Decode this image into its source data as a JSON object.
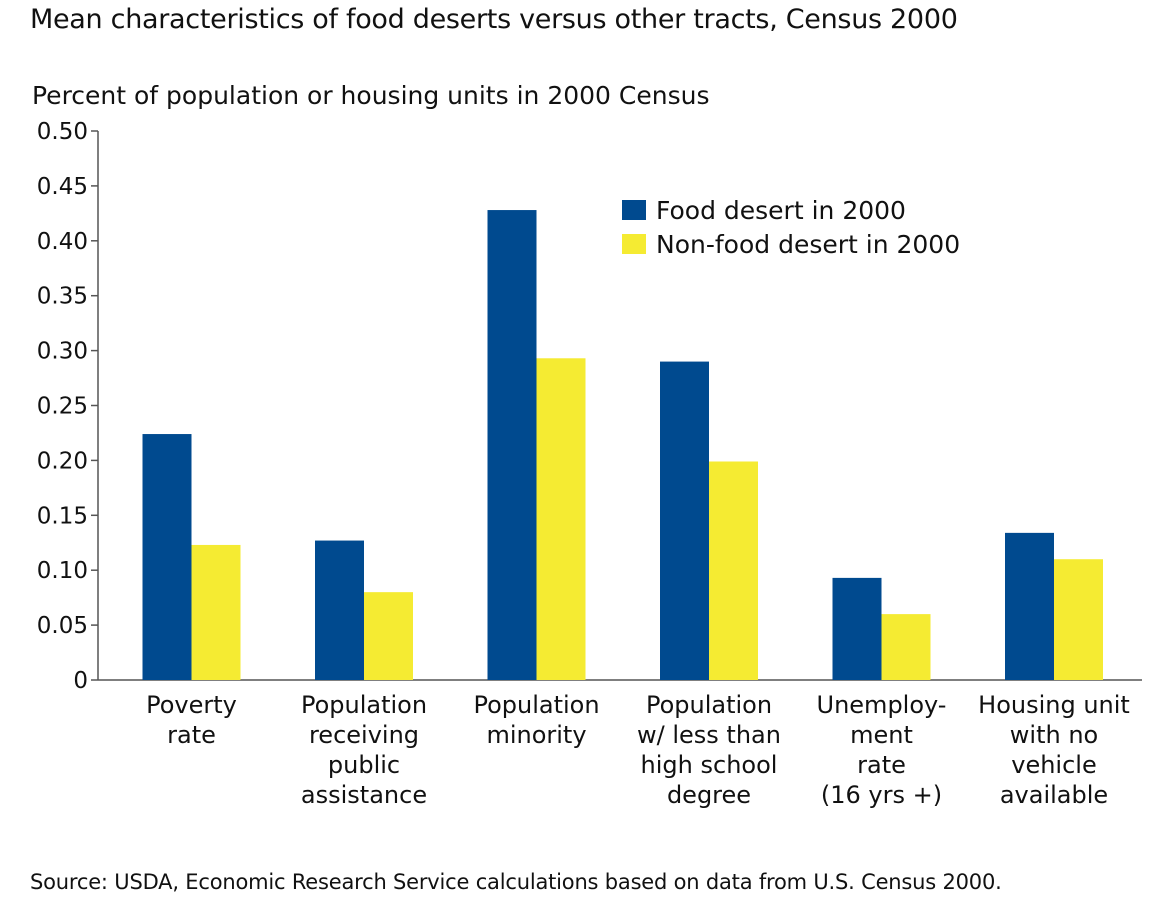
{
  "title": "Mean characteristics of food deserts versus other tracts, Census 2000",
  "source": "Source: USDA, Economic Research Service calculations based on data from U.S. Census 2000.",
  "chart_data": {
    "type": "bar",
    "ylabel": "Percent of population or housing units in 2000 Census",
    "xlabel": "",
    "ylim": [
      0,
      0.5
    ],
    "yticks": [
      "0",
      "0.05",
      "0.10",
      "0.15",
      "0.20",
      "0.25",
      "0.30",
      "0.35",
      "0.40",
      "0.45",
      "0.50"
    ],
    "categories": [
      [
        "Poverty",
        "rate"
      ],
      [
        "Population",
        "receiving",
        "public",
        "assistance"
      ],
      [
        "Population",
        "minority"
      ],
      [
        "Population",
        "w/ less than",
        "high school",
        "degree"
      ],
      [
        "Unemploy-",
        "ment",
        "rate",
        "(16 yrs +)"
      ],
      [
        "Housing unit",
        "with no",
        "vehicle",
        "available"
      ]
    ],
    "series": [
      {
        "name": "Food desert in 2000",
        "color": "#004a8f",
        "values": [
          0.224,
          0.127,
          0.428,
          0.29,
          0.093,
          0.134
        ]
      },
      {
        "name": "Non-food desert in 2000",
        "color": "#f5eb32",
        "values": [
          0.123,
          0.08,
          0.293,
          0.199,
          0.06,
          0.11
        ]
      }
    ],
    "grid": false,
    "legend_position": "top-right"
  }
}
